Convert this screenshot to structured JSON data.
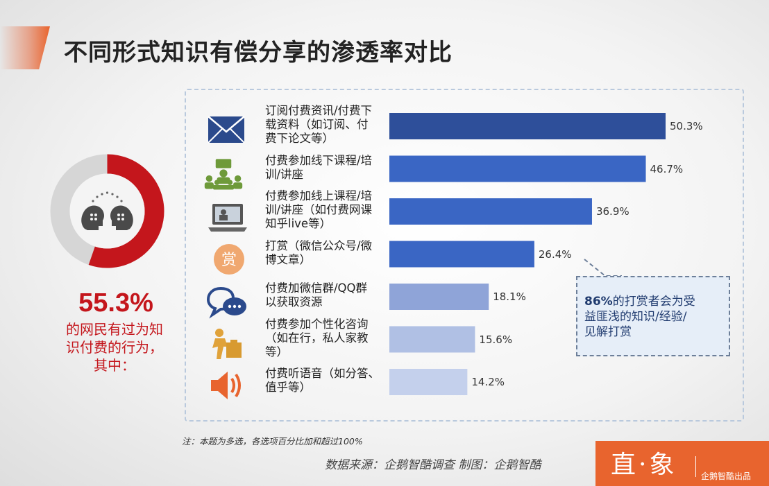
{
  "title": "不同形式知识有偿分享的渗透率对比",
  "summary": {
    "percent": "55.3%",
    "text_lines": [
      "的网民有过为知",
      "识付费的行为，",
      "其中："
    ]
  },
  "callout": {
    "highlight": "86%",
    "lines": [
      "的打赏者会为受",
      "益匪浅的知识/经验/",
      "见解打赏"
    ]
  },
  "note": "注：本题为多选，各选项百分比加和超过100%",
  "source": "数据来源：企鹅智酷调查  制图：企鹅智酷",
  "logo": {
    "main": "直·象",
    "sub": "企鹅智酷出品"
  },
  "colors": {
    "accent": "#e8642e",
    "highlight": "#c4161c",
    "bar_dark": "#2e4f9a",
    "bar_mid": "#3a66c4",
    "bar_light": "#8fa4d8"
  },
  "chart_data": {
    "type": "bar",
    "orientation": "horizontal",
    "categories": [
      [
        "订阅付费资讯/付费下",
        "载资料（如订阅、付",
        "费下论文等）"
      ],
      [
        "付费参加线下课程/培",
        "训/讲座"
      ],
      [
        "付费参加线上课程/培",
        "训/讲座（如付费网课",
        "知乎live等）"
      ],
      [
        "打赏（微信公众号/微",
        "博文章）"
      ],
      [
        "付费加微信群/QQ群",
        "以获取资源"
      ],
      [
        "付费参加个性化咨询",
        "（如在行，私人家教",
        "等）"
      ],
      [
        "付费听语音（如分答、",
        "值乎等）"
      ]
    ],
    "values": [
      50.3,
      46.7,
      36.9,
      26.4,
      18.1,
      15.6,
      14.2
    ],
    "value_labels": [
      "50.3%",
      "46.7%",
      "36.9%",
      "26.4%",
      "18.1%",
      "15.6%",
      "14.2%"
    ],
    "icons": [
      "envelope-icon",
      "classroom-icon",
      "laptop-video-icon",
      "reward-icon",
      "chat-bubble-icon",
      "consulting-icon",
      "speaker-icon"
    ],
    "bar_colors": [
      "#2e4f9a",
      "#3a66c4",
      "#3a66c4",
      "#3a66c4",
      "#8fa4d8",
      "#b0c0e4",
      "#c4d0ec"
    ],
    "xlim": [
      0,
      60
    ],
    "grid": false,
    "legend": "none"
  }
}
